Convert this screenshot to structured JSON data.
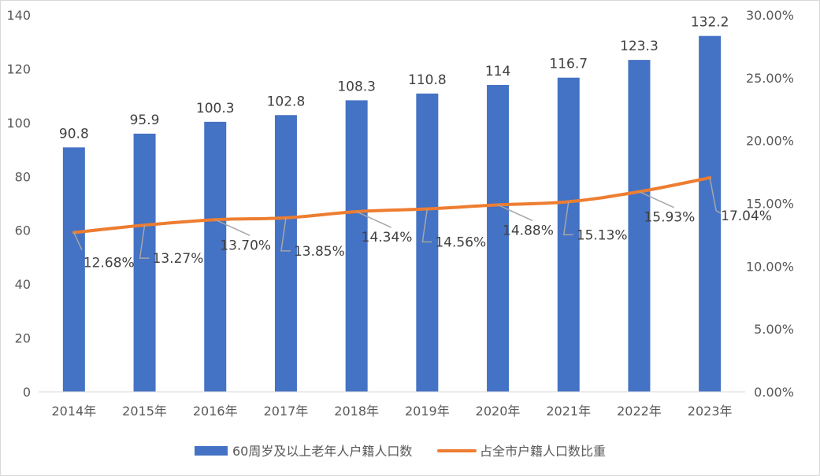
{
  "chart_data": {
    "type": "bar",
    "categories": [
      "2014年",
      "2015年",
      "2016年",
      "2017年",
      "2018年",
      "2019年",
      "2020年",
      "2021年",
      "2022年",
      "2023年"
    ],
    "series": [
      {
        "name": "60周岁及以上老年人户籍人口数",
        "type": "bar",
        "axis": "left",
        "values": [
          90.8,
          95.9,
          100.3,
          102.8,
          108.3,
          110.8,
          114,
          116.7,
          123.3,
          132.2
        ],
        "labels": [
          "90.8",
          "95.9",
          "100.3",
          "102.8",
          "108.3",
          "110.8",
          "114",
          "116.7",
          "123.3",
          "132.2"
        ],
        "color": "#4472c4"
      },
      {
        "name": "占全市户籍人口数比重",
        "type": "line",
        "axis": "right",
        "values": [
          12.68,
          13.27,
          13.7,
          13.85,
          14.34,
          14.56,
          14.88,
          15.13,
          15.93,
          17.04
        ],
        "labels": [
          "12.68%",
          "13.27%",
          "13.70%",
          "13.85%",
          "14.34%",
          "14.56%",
          "14.88%",
          "15.13%",
          "15.93%",
          "17.04%"
        ],
        "color": "#ed7d31"
      }
    ],
    "y_left": {
      "range": [
        0,
        140
      ],
      "ticks": [
        "0",
        "20",
        "40",
        "60",
        "80",
        "100",
        "120",
        "140"
      ]
    },
    "y_right": {
      "range": [
        0,
        30
      ],
      "ticks": [
        "0.00%",
        "5.00%",
        "10.00%",
        "15.00%",
        "20.00%",
        "25.00%",
        "30.00%"
      ]
    },
    "grid": false,
    "legend": "bottom"
  }
}
